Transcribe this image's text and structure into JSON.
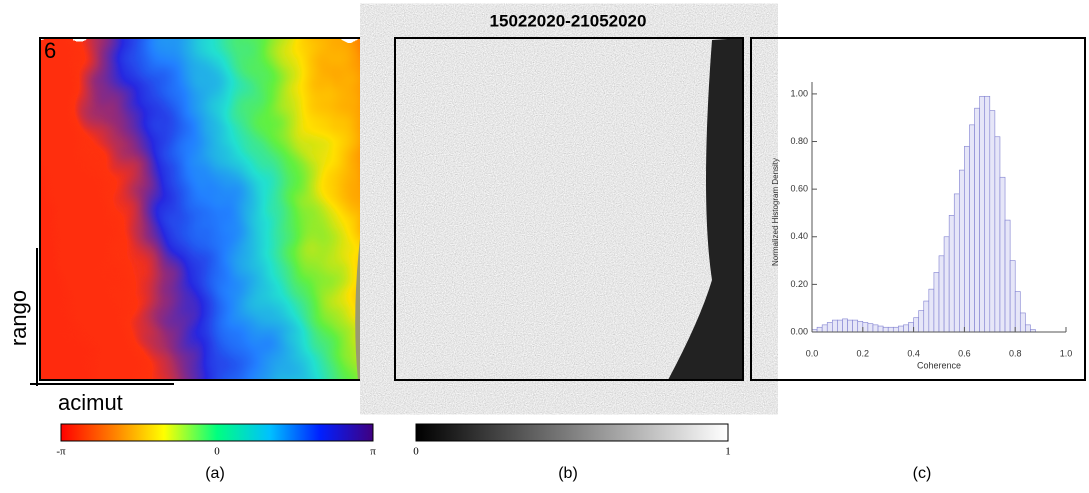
{
  "figure": {
    "title": "15022020-21052020",
    "panel_number": "6",
    "range_label": "rango",
    "azimuth_label": "acimut",
    "phase_bar": {
      "min_label": "-π",
      "mid_label": "0",
      "max_label": "π"
    },
    "coherence_bar": {
      "min_label": "0",
      "max_label": "1"
    },
    "panel_labels": [
      "(a)",
      "(b)",
      "(c)"
    ]
  },
  "chart_data": {
    "type": "histogram",
    "xlabel": "Coherence",
    "ylabel": "Normalized Histogram Density",
    "color": "#7f7fd0",
    "bins": [
      0.0,
      0.02,
      0.04,
      0.06,
      0.08,
      0.1,
      0.12,
      0.14,
      0.16,
      0.18,
      0.2,
      0.22,
      0.24,
      0.26,
      0.28,
      0.3,
      0.32,
      0.34,
      0.36,
      0.38,
      0.4,
      0.42,
      0.44,
      0.46,
      0.48,
      0.5,
      0.52,
      0.54,
      0.56,
      0.58,
      0.6,
      0.62,
      0.64,
      0.66,
      0.68,
      0.7,
      0.72,
      0.74,
      0.76,
      0.78,
      0.8,
      0.82,
      0.84,
      0.86,
      0.88,
      0.9
    ],
    "values": [
      0.01,
      0.02,
      0.03,
      0.04,
      0.05,
      0.05,
      0.055,
      0.05,
      0.05,
      0.045,
      0.04,
      0.035,
      0.03,
      0.025,
      0.02,
      0.02,
      0.02,
      0.025,
      0.03,
      0.04,
      0.06,
      0.09,
      0.13,
      0.18,
      0.25,
      0.32,
      0.4,
      0.49,
      0.58,
      0.68,
      0.78,
      0.87,
      0.94,
      0.99,
      0.99,
      0.93,
      0.82,
      0.65,
      0.47,
      0.3,
      0.17,
      0.08,
      0.03,
      0.01,
      0.0
    ],
    "xlim": [
      0,
      1
    ],
    "ylim": [
      0,
      1.05
    ],
    "xticks": [
      {
        "value": 0,
        "label": "0.0"
      },
      {
        "value": 0.2,
        "label": "0.2"
      },
      {
        "value": 0.4,
        "label": "0.4"
      },
      {
        "value": 0.6,
        "label": "0.6"
      },
      {
        "value": 0.8,
        "label": "0.8"
      },
      {
        "value": 1,
        "label": "1.0"
      }
    ],
    "yticks": [
      {
        "value": 0,
        "label": "0.00"
      },
      {
        "value": 0.2,
        "label": "0.20"
      },
      {
        "value": 0.4,
        "label": "0.40"
      },
      {
        "value": 0.6,
        "label": "0.60"
      },
      {
        "value": 0.8,
        "label": "0.80"
      },
      {
        "value": 1,
        "label": "1.00"
      }
    ]
  }
}
